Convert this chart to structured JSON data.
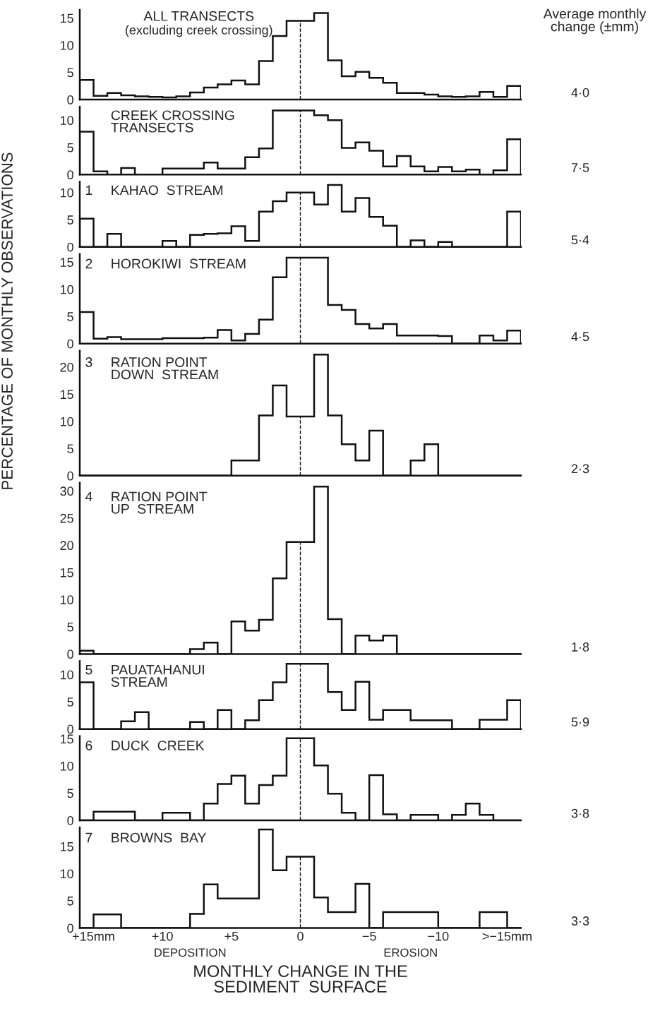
{
  "chart_data": [
    {
      "type": "histogram",
      "title": "ALL TRANSECTS",
      "subtitle": "(excluding creek crossing)",
      "annotations": [
        "Average monthly\nchange (±mm)",
        "4·0"
      ],
      "bins": [
        16,
        15,
        14,
        13,
        12,
        11,
        10,
        9,
        8,
        7,
        6,
        5,
        4,
        3,
        2,
        1,
        0,
        -1,
        -2,
        -3,
        -4,
        -5,
        -6,
        -7,
        -8,
        -9,
        -10,
        -11,
        -12,
        -13,
        -14,
        -15,
        -16
      ],
      "values": [
        3.6,
        0.7,
        1.2,
        0.8,
        0.6,
        0.5,
        0.4,
        0.6,
        1.3,
        2.2,
        2.8,
        3.5,
        2.8,
        7.1,
        11.7,
        14.5,
        14.5,
        15.9,
        7.2,
        4.3,
        5.1,
        4.0,
        3.1,
        1.2,
        1.2,
        0.9,
        0.6,
        0.5,
        0.6,
        1.4,
        0.5,
        2.5
      ],
      "xlim": [
        16,
        -16
      ],
      "ylim": [
        0,
        16.5
      ],
      "yticks": [
        0,
        5,
        10,
        15
      ],
      "tick_labels": "y",
      "ref_lines": [
        {
          "axis": "x",
          "value": 0,
          "line_style": "dashed"
        }
      ]
    },
    {
      "type": "histogram",
      "title": "CREEK CROSSING\nTRANSECTS",
      "annotations": [
        "7·5"
      ],
      "bins": [
        16,
        15,
        14,
        13,
        12,
        11,
        10,
        9,
        8,
        7,
        6,
        5,
        4,
        3,
        2,
        1,
        0,
        -1,
        -2,
        -3,
        -4,
        -5,
        -6,
        -7,
        -8,
        -9,
        -10,
        -11,
        -12,
        -13,
        -14,
        -15,
        -16
      ],
      "values": [
        7.9,
        0.6,
        0,
        1.2,
        0,
        0,
        1.1,
        1.1,
        1.1,
        2.2,
        1.1,
        1.1,
        3.2,
        4.8,
        11.8,
        11.8,
        11.8,
        10.9,
        10.0,
        4.9,
        5.9,
        4.4,
        1.5,
        3.4,
        1.5,
        0.6,
        1.4,
        0.6,
        0.9,
        0,
        0.8,
        6.5
      ],
      "xlim": [
        16,
        -16
      ],
      "ylim": [
        0,
        12.5
      ],
      "yticks": [
        0,
        5,
        10
      ],
      "tick_labels": "y",
      "ref_lines": [
        {
          "axis": "x",
          "value": 0,
          "line_style": "dashed"
        }
      ]
    },
    {
      "type": "histogram",
      "title": "KAHAO  STREAM",
      "annotations": [
        "1",
        "5·4"
      ],
      "bins": [
        16,
        15,
        14,
        13,
        12,
        11,
        10,
        9,
        8,
        7,
        6,
        5,
        4,
        3,
        2,
        1,
        0,
        -1,
        -2,
        -3,
        -4,
        -5,
        -6,
        -7,
        -8,
        -9,
        -10,
        -11,
        -12,
        -13,
        -14,
        -15,
        -16
      ],
      "values": [
        5.2,
        0,
        2.4,
        0,
        0,
        0,
        1.1,
        0,
        2.2,
        2.4,
        2.5,
        3.8,
        1.1,
        6.5,
        8.4,
        10.0,
        10.0,
        7.8,
        11.4,
        6.5,
        9.0,
        5.5,
        3.9,
        0,
        1.2,
        0,
        0.9,
        0,
        0,
        0,
        0,
        6.5
      ],
      "xlim": [
        16,
        -16
      ],
      "ylim": [
        0,
        12
      ],
      "yticks": [
        0,
        5,
        10
      ],
      "tick_labels": "y",
      "ref_lines": [
        {
          "axis": "x",
          "value": 0,
          "line_style": "dashed"
        }
      ]
    },
    {
      "type": "histogram",
      "title": "HOROKIWI  STREAM",
      "ylabel": "PERCENTAGE OF MONTHLY OBSERVATIONS",
      "annotations": [
        "2",
        "4·5"
      ],
      "bins": [
        16,
        15,
        14,
        13,
        12,
        11,
        10,
        9,
        8,
        7,
        6,
        5,
        4,
        3,
        2,
        1,
        0,
        -1,
        -2,
        -3,
        -4,
        -5,
        -6,
        -7,
        -8,
        -9,
        -10,
        -11,
        -12,
        -13,
        -14,
        -15,
        -16
      ],
      "values": [
        5.8,
        0.9,
        1.2,
        0.8,
        0.8,
        0.8,
        1.0,
        1.0,
        1.0,
        1.1,
        2.5,
        0.6,
        1.8,
        4.4,
        12.2,
        15.8,
        15.8,
        15.8,
        7.1,
        6.2,
        3.6,
        2.8,
        3.6,
        1.5,
        1.5,
        1.5,
        1.4,
        0,
        0,
        1.5,
        0.6,
        2.4
      ],
      "xlim": [
        16,
        -16
      ],
      "ylim": [
        0,
        16.5
      ],
      "yticks": [
        0,
        5,
        10,
        15
      ],
      "tick_labels": "y",
      "ref_lines": [
        {
          "axis": "x",
          "value": 0,
          "line_style": "dashed"
        }
      ]
    },
    {
      "type": "histogram",
      "title": "RATION POINT\nDOWN  STREAM",
      "annotations": [
        "3",
        "2·3"
      ],
      "bins": [
        16,
        15,
        14,
        13,
        12,
        11,
        10,
        9,
        8,
        7,
        6,
        5,
        4,
        3,
        2,
        1,
        0,
        -1,
        -2,
        -3,
        -4,
        -5,
        -6,
        -7,
        -8,
        -9,
        -10,
        -11,
        -12,
        -13,
        -14,
        -15,
        -16
      ],
      "values": [
        0,
        0,
        0,
        0,
        0,
        0,
        0,
        0,
        0,
        0,
        0,
        2.8,
        2.8,
        11.1,
        16.6,
        10.9,
        10.9,
        22.3,
        11.1,
        5.8,
        2.8,
        8.3,
        0,
        0,
        2.8,
        5.8,
        0,
        0,
        0,
        0,
        0,
        0
      ],
      "xlim": [
        16,
        -16
      ],
      "ylim": [
        0,
        23
      ],
      "yticks": [
        0,
        5,
        10,
        15,
        20
      ],
      "tick_labels": "y",
      "ref_lines": [
        {
          "axis": "x",
          "value": 0,
          "line_style": "dashed"
        }
      ]
    },
    {
      "type": "histogram",
      "title": "RATION POINT\nUP  STREAM",
      "annotations": [
        "4",
        "1·8"
      ],
      "bins": [
        16,
        15,
        14,
        13,
        12,
        11,
        10,
        9,
        8,
        7,
        6,
        5,
        4,
        3,
        2,
        1,
        0,
        -1,
        -2,
        -3,
        -4,
        -5,
        -6,
        -7,
        -8,
        -9,
        -10,
        -11,
        -12,
        -13,
        -14,
        -15,
        -16
      ],
      "values": [
        0.6,
        0,
        0,
        0,
        0,
        0,
        0,
        0,
        0.9,
        2.1,
        0,
        6.0,
        4.3,
        6.3,
        13.9,
        20.6,
        20.6,
        30.8,
        6.4,
        0,
        3.4,
        2.5,
        3.4,
        0,
        0,
        0,
        0,
        0,
        0,
        0,
        0,
        0
      ],
      "xlim": [
        16,
        -16
      ],
      "ylim": [
        0,
        31.5
      ],
      "yticks": [
        0,
        5,
        10,
        15,
        20,
        25,
        30
      ],
      "tick_labels": "y",
      "ref_lines": [
        {
          "axis": "x",
          "value": 0,
          "line_style": "dashed"
        }
      ]
    },
    {
      "type": "histogram",
      "title": "PAUATAHANUI\nSTREAM",
      "annotations": [
        "5",
        "5·9"
      ],
      "bins": [
        16,
        15,
        14,
        13,
        12,
        11,
        10,
        9,
        8,
        7,
        6,
        5,
        4,
        3,
        2,
        1,
        0,
        -1,
        -2,
        -3,
        -4,
        -5,
        -6,
        -7,
        -8,
        -9,
        -10,
        -11,
        -12,
        -13,
        -14,
        -15,
        -16
      ],
      "values": [
        8.6,
        0,
        0,
        1.4,
        3.1,
        0,
        0,
        0,
        1.3,
        0,
        3.5,
        0,
        1.6,
        5.3,
        8.6,
        12.0,
        12.0,
        12.0,
        6.8,
        3.5,
        8.7,
        1.7,
        3.5,
        3.5,
        1.6,
        1.6,
        1.6,
        0,
        0,
        1.7,
        1.7,
        5.3
      ],
      "xlim": [
        16,
        -16
      ],
      "ylim": [
        0,
        12.5
      ],
      "yticks": [
        0,
        5,
        10
      ],
      "tick_labels": "y",
      "ref_lines": [
        {
          "axis": "x",
          "value": 0,
          "line_style": "dashed"
        }
      ]
    },
    {
      "type": "histogram",
      "title": "DUCK  CREEK",
      "annotations": [
        "6",
        "3·8"
      ],
      "bins": [
        16,
        15,
        14,
        13,
        12,
        11,
        10,
        9,
        8,
        7,
        6,
        5,
        4,
        3,
        2,
        1,
        0,
        -1,
        -2,
        -3,
        -4,
        -5,
        -6,
        -7,
        -8,
        -9,
        -10,
        -11,
        -12,
        -13,
        -14,
        -15,
        -16
      ],
      "values": [
        0,
        1.6,
        1.6,
        1.6,
        0,
        0,
        1.4,
        1.4,
        0,
        3.1,
        6.7,
        8.2,
        3.1,
        6.5,
        8.2,
        15.1,
        15.1,
        10.1,
        4.9,
        1.4,
        0,
        8.3,
        1.1,
        0,
        1.0,
        1.0,
        0,
        1.0,
        3.1,
        1.0,
        0,
        0
      ],
      "xlim": [
        16,
        -16
      ],
      "ylim": [
        0,
        15.5
      ],
      "yticks": [
        0,
        5,
        10,
        15
      ],
      "tick_labels": "y",
      "ref_lines": [
        {
          "axis": "x",
          "value": 0,
          "line_style": "dashed"
        }
      ]
    },
    {
      "type": "histogram",
      "title": "BROWNS  BAY",
      "xlabel": "MONTHLY CHANGE IN THE\nSEDIMENT  SURFACE",
      "annotations": [
        "7",
        "DEPOSITION",
        "EROSION",
        "3·3"
      ],
      "bins": [
        16,
        15,
        14,
        13,
        12,
        11,
        10,
        9,
        8,
        7,
        6,
        5,
        4,
        3,
        2,
        1,
        0,
        -1,
        -2,
        -3,
        -4,
        -5,
        -6,
        -7,
        -8,
        -9,
        -10,
        -11,
        -12,
        -13,
        -14,
        -15,
        -16
      ],
      "values": [
        0,
        2.5,
        2.5,
        0,
        0,
        0,
        0,
        0,
        2.6,
        8.0,
        5.4,
        5.4,
        5.4,
        18.1,
        10.6,
        13.1,
        13.1,
        5.6,
        2.9,
        2.9,
        8.1,
        0,
        2.9,
        2.9,
        2.9,
        2.9,
        0,
        0,
        0,
        2.9,
        2.9,
        0
      ],
      "xlim": [
        16,
        -16
      ],
      "xticks": [
        {
          "value": 15,
          "label": "+15mm"
        },
        {
          "value": 10,
          "label": "+10"
        },
        {
          "value": 5,
          "label": "+5"
        },
        0,
        {
          "value": -5,
          "label": "−5"
        },
        {
          "value": -10,
          "label": "−10"
        },
        {
          "value": -15,
          "label": ">−15mm"
        }
      ],
      "ylim": [
        0,
        18.5
      ],
      "yticks": [
        0,
        5,
        10,
        15
      ],
      "ref_lines": [
        {
          "axis": "x",
          "value": 0,
          "line_style": "dashed"
        }
      ]
    }
  ]
}
